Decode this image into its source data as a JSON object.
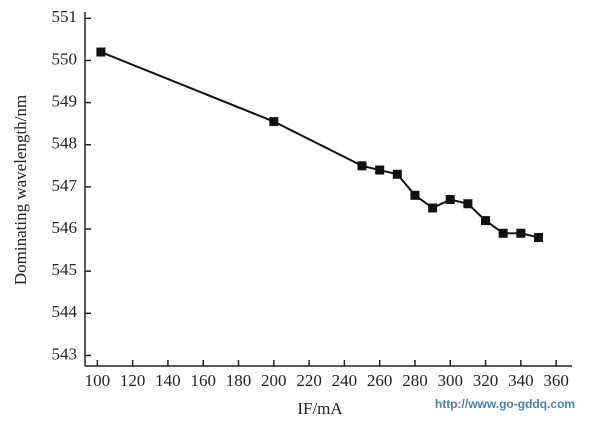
{
  "chart_data": {
    "type": "line",
    "y_label": "Dominating wavelength/nm",
    "x_label": "IF/mA",
    "watermark": "http://www.go-gddq.com",
    "x": [
      102,
      200,
      250,
      260,
      270,
      280,
      290,
      300,
      310,
      320,
      330,
      340,
      350
    ],
    "series": [
      {
        "name": "Dominating wavelength",
        "color": "#111111",
        "values": [
          550.2,
          548.55,
          547.5,
          547.4,
          547.3,
          546.8,
          546.5,
          546.7,
          546.6,
          546.2,
          545.9,
          545.9,
          545.8
        ]
      }
    ],
    "xlim": [
      93,
      369
    ],
    "ylim": [
      542.75,
      551.15
    ],
    "xticks": [
      100,
      120,
      140,
      160,
      180,
      200,
      220,
      240,
      260,
      280,
      300,
      320,
      340,
      360
    ],
    "yticks": [
      543,
      544,
      545,
      546,
      547,
      548,
      549,
      550,
      551
    ],
    "grid": false
  }
}
